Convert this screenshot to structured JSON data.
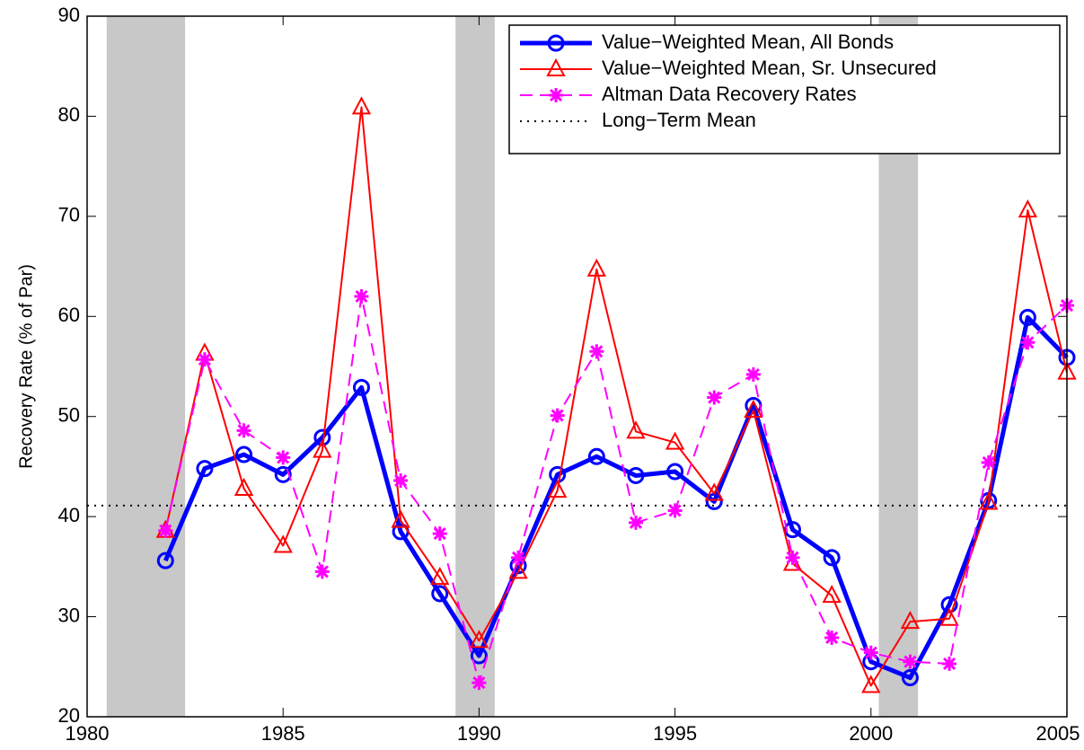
{
  "chart_data": {
    "type": "line",
    "ylabel": "Recovery Rate (% of Par)",
    "x": [
      1982,
      1983,
      1984,
      1985,
      1986,
      1987,
      1988,
      1989,
      1990,
      1991,
      1992,
      1993,
      1994,
      1995,
      1996,
      1997,
      1998,
      1999,
      2000,
      2001,
      2002,
      2003,
      2004,
      2005
    ],
    "series": [
      {
        "name": "Value−Weighted Mean, All Bonds",
        "color": "#0000ff",
        "marker": "circle",
        "width": 5,
        "dash": "solid",
        "values": [
          35.6,
          44.8,
          46.2,
          44.2,
          47.9,
          52.9,
          38.5,
          32.3,
          26.1,
          35.1,
          44.2,
          46.0,
          44.1,
          44.5,
          41.5,
          51.1,
          38.7,
          35.9,
          25.5,
          23.9,
          31.2,
          41.6,
          59.9,
          55.9
        ]
      },
      {
        "name": "Value−Weighted Mean, Sr. Unsecured",
        "color": "#ff0000",
        "marker": "triangle",
        "width": 2,
        "dash": "solid",
        "values": [
          38.6,
          56.3,
          42.8,
          37.1,
          46.6,
          80.9,
          39.6,
          33.9,
          27.6,
          34.5,
          42.6,
          64.7,
          48.5,
          47.4,
          42.3,
          50.6,
          35.3,
          32.1,
          23.1,
          29.5,
          29.8,
          41.4,
          70.6,
          54.4
        ]
      },
      {
        "name": "Altman Data Recovery Rates",
        "color": "#ff00ff",
        "marker": "asterisk",
        "width": 2,
        "dash": "dashed",
        "values": [
          38.6,
          55.7,
          48.6,
          45.9,
          34.5,
          62.0,
          43.6,
          38.3,
          23.4,
          35.9,
          50.1,
          56.5,
          39.4,
          40.6,
          51.9,
          54.2,
          35.9,
          27.9,
          26.4,
          25.5,
          25.3,
          45.4,
          57.4,
          61.1
        ]
      }
    ],
    "reference_line": {
      "name": "Long−Term Mean",
      "value": 41.1,
      "color": "#000000",
      "dash": "dotted"
    },
    "shaded_regions": [
      [
        1980.5,
        1982.5
      ],
      [
        1989.4,
        1990.4
      ],
      [
        2000.2,
        2001.2
      ]
    ],
    "shade_color": "#c8c8c8",
    "xlim": [
      1980,
      2005
    ],
    "xticks": [
      1980,
      1985,
      1990,
      1995,
      2000,
      2005
    ],
    "ylim": [
      20,
      90
    ],
    "yticks": [
      20,
      30,
      40,
      50,
      60,
      70,
      80,
      90
    ],
    "legend": "upper right"
  }
}
